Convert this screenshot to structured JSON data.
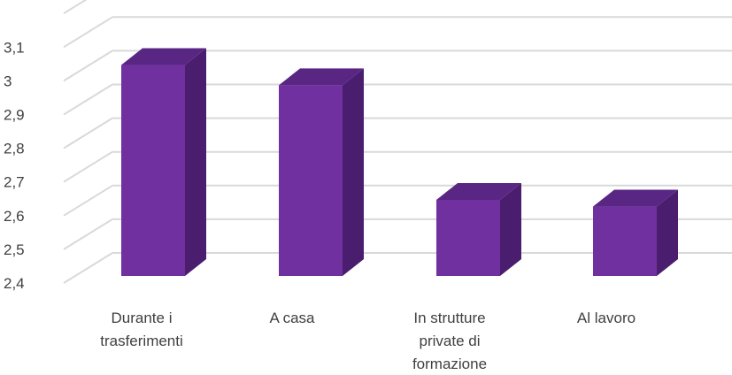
{
  "chart_data": {
    "type": "bar",
    "title": "",
    "xlabel": "",
    "ylabel": "",
    "categories": [
      "Durante i trasferimenti",
      "A casa",
      "In strutture private di formazione",
      "Al lavoro"
    ],
    "category_lines": [
      [
        "Durante i",
        "trasferimenti"
      ],
      [
        "A casa"
      ],
      [
        "In strutture",
        "private di",
        "formazione"
      ],
      [
        "Al lavoro"
      ]
    ],
    "values": [
      3.06,
      3.0,
      2.66,
      2.64
    ],
    "ylim": [
      2.4,
      3.2
    ],
    "yticks": [
      "2,4",
      "2,5",
      "2,6",
      "2,7",
      "2,8",
      "2,9",
      "3",
      "3,1"
    ],
    "grid": true,
    "style": "3d-column",
    "colors": {
      "bar_front": "#7030a0",
      "bar_top": "#5a2684",
      "bar_side": "#4a1d6e",
      "grid": "#d9d9d9",
      "text": "#404040"
    }
  }
}
